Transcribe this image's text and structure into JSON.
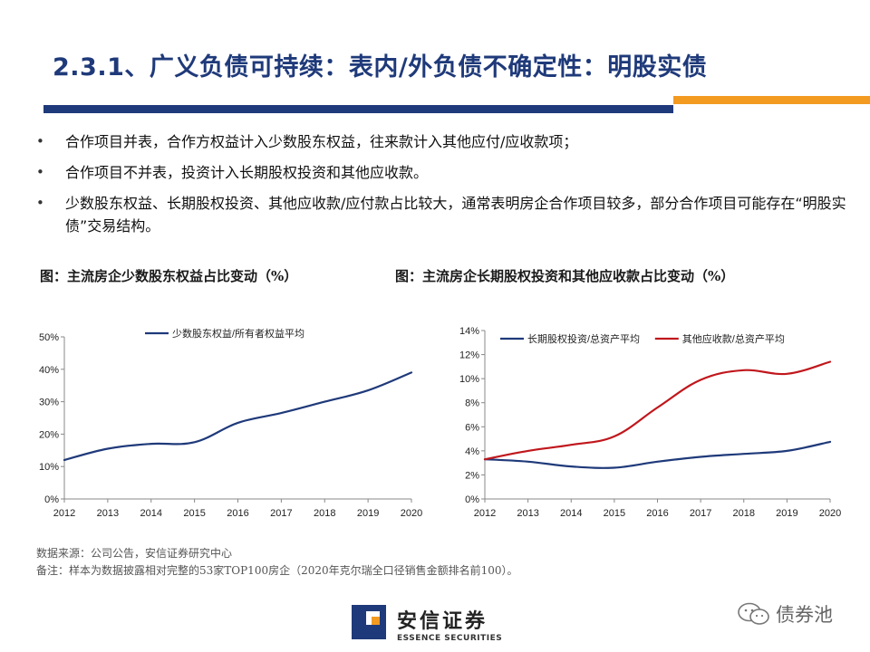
{
  "header": {
    "title": "2.3.1、广义负债可持续：表内/外负债不确定性：明股实债",
    "accent_colors": {
      "primary": "#1f3a7a",
      "secondary": "#f39a21"
    }
  },
  "bullets": [
    "合作项目并表，合作方权益计入少数股东权益，往来款计入其他应付/应收款项；",
    "合作项目不并表，投资计入长期股权投资和其他应收款。",
    "少数股东权益、长期股权投资、其他应收款/应付款占比较大，通常表明房企合作项目较多，部分合作项目可能存在“明股实债”交易结构。"
  ],
  "captions": {
    "left": "图：主流房企少数股东权益占比变动（%）",
    "right": "图：主流房企长期股权投资和其他应收款占比变动（%）"
  },
  "chart_data": [
    {
      "type": "line",
      "title": "",
      "categories": [
        "2012",
        "2013",
        "2014",
        "2015",
        "2016",
        "2017",
        "2018",
        "2019",
        "2020"
      ],
      "series": [
        {
          "name": "少数股东权益/所有者权益平均",
          "color": "#1f3a7a",
          "values": [
            12,
            15.5,
            17,
            17.5,
            23.5,
            26.5,
            30,
            33.5,
            39
          ]
        }
      ],
      "y_ticks": [
        "0%",
        "10%",
        "20%",
        "30%",
        "40%",
        "50%"
      ],
      "ylim": [
        0,
        50
      ],
      "legend": "top"
    },
    {
      "type": "line",
      "title": "",
      "categories": [
        "2012",
        "2013",
        "2014",
        "2015",
        "2016",
        "2017",
        "2018",
        "2019",
        "2020"
      ],
      "series": [
        {
          "name": "长期股权投资/总资产平均",
          "color": "#1f3a7a",
          "values": [
            3.3,
            3.1,
            2.7,
            2.6,
            3.1,
            3.5,
            3.75,
            4.0,
            4.75
          ]
        },
        {
          "name": "其他应收款/总资产平均",
          "color": "#c0171c",
          "values": [
            3.3,
            4.0,
            4.5,
            5.2,
            7.6,
            9.9,
            10.7,
            10.4,
            11.4
          ]
        }
      ],
      "y_ticks": [
        "0%",
        "2%",
        "4%",
        "6%",
        "8%",
        "10%",
        "12%",
        "14%"
      ],
      "ylim": [
        0,
        14
      ],
      "legend": "top"
    }
  ],
  "footer": {
    "source": "数据来源：公司公告，安信证券研究中心",
    "note": "备注：样本为数据披露相对完整的53家TOP100房企（2020年克尔瑞全口径销售金额排名前100）。",
    "logo_cn": "安信证券",
    "logo_en": "ESSENCE SECURITIES",
    "watermark": "债券池"
  }
}
